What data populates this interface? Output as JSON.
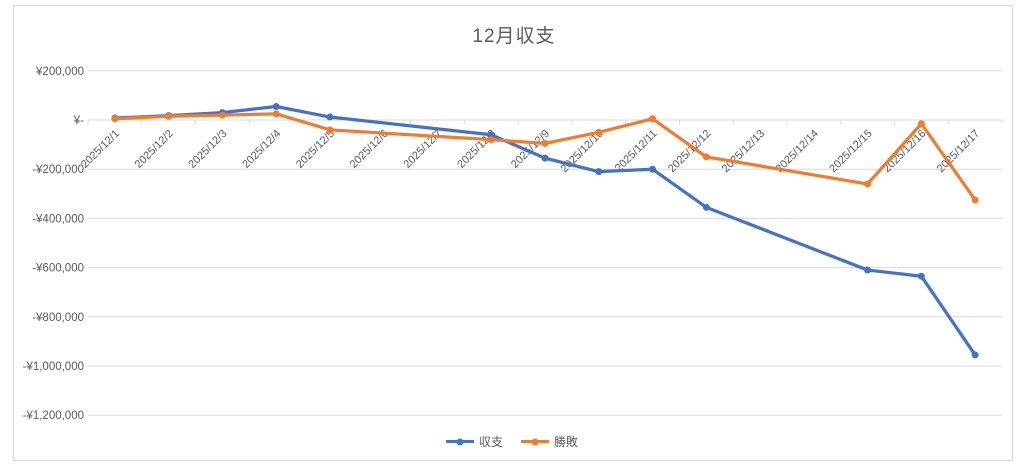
{
  "chart_data": {
    "type": "line",
    "title": "12月収支",
    "categories": [
      "2025/12/1",
      "2025/12/2",
      "2025/12/3",
      "2025/12/4",
      "2025/12/5",
      "2025/12/6",
      "2025/12/7",
      "2025/12/8",
      "2025/12/9",
      "2025/12/10",
      "2025/12/11",
      "2025/12/12",
      "2025/12/13",
      "2025/12/14",
      "2025/12/15",
      "2025/12/16",
      "2025/12/17"
    ],
    "series": [
      {
        "name": "収支",
        "color": "#4472C4",
        "values": [
          8000,
          18000,
          30000,
          55000,
          12000,
          null,
          null,
          -60000,
          -155000,
          -210000,
          -200000,
          -355000,
          null,
          null,
          -610000,
          -635000,
          -955000
        ]
      },
      {
        "name": "勝敗",
        "color": "#ED7D31",
        "values": [
          5000,
          15000,
          20000,
          25000,
          -40000,
          null,
          null,
          -80000,
          -95000,
          -50000,
          5000,
          -150000,
          null,
          null,
          -260000,
          -15000,
          -325000
        ]
      }
    ],
    "y_axis": {
      "min": -1200000,
      "max": 200000,
      "step": 200000,
      "tick_labels": [
        {
          "label": "¥200,000",
          "value": 200000
        },
        {
          "label": "¥-",
          "value": 0
        },
        {
          "label": "-¥200,000",
          "value": -200000
        },
        {
          "label": "-¥400,000",
          "value": -400000
        },
        {
          "label": "-¥600,000",
          "value": -600000
        },
        {
          "label": "-¥800,000",
          "value": -800000
        },
        {
          "label": "-¥1,000,000",
          "value": -1000000
        },
        {
          "label": "-¥1,200,000",
          "value": -1200000
        }
      ]
    },
    "x_axis": {
      "label_rotation_deg": 45
    },
    "legend_position": "bottom",
    "grid": true,
    "gaps_connected": true,
    "colors": {
      "grid": "#D9D9D9",
      "axis_text": "#595959",
      "title_text": "#595959",
      "frame_border": "#D9D9D9"
    }
  }
}
